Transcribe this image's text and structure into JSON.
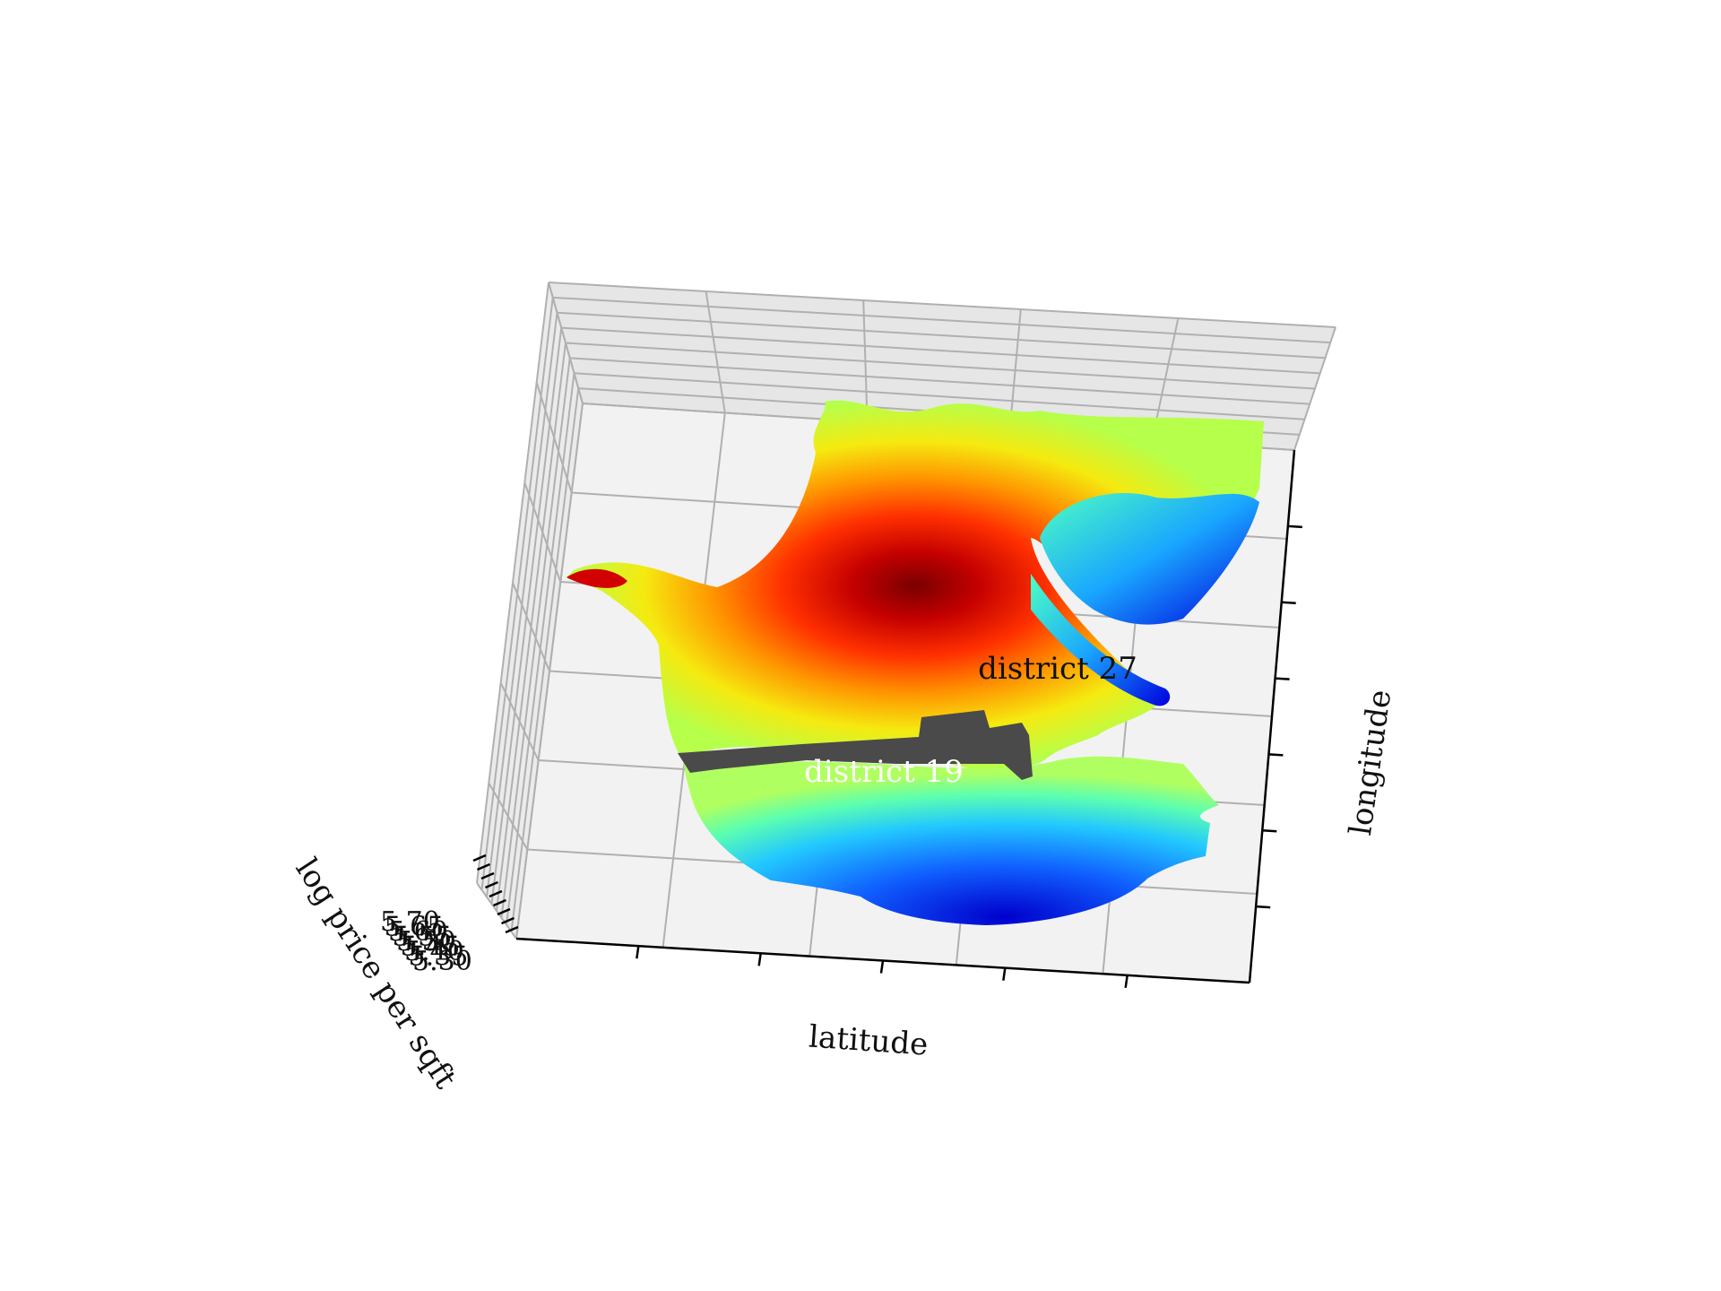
{
  "chart_data": {
    "type": "surface3d",
    "xlabel": "latitude",
    "ylabel": "longitude",
    "zlabel": "log price per sqft",
    "z_tick_labels": [
      "5.70",
      "5.65",
      "5.60",
      "5.55",
      "5.50",
      "5.45",
      "5.40",
      "5.35",
      "5.30"
    ],
    "colormap": "jet",
    "grid": true,
    "annotations": [
      {
        "text": "district 27",
        "color": "#111111"
      },
      {
        "text": "district 19",
        "color": "#ffffff"
      }
    ],
    "wall_color": "#4a4a4a",
    "pane_color": "#f2f2f2"
  }
}
